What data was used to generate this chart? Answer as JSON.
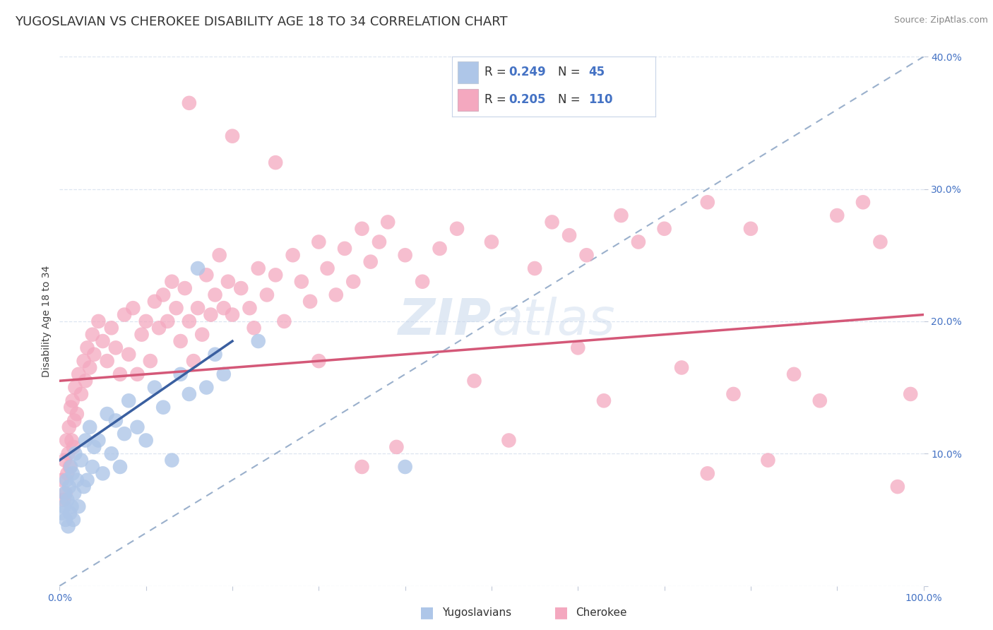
{
  "title": "YUGOSLAVIAN VS CHEROKEE DISABILITY AGE 18 TO 34 CORRELATION CHART",
  "source": "Source: ZipAtlas.com",
  "ylabel": "Disability Age 18 to 34",
  "watermark_zip": "ZIP",
  "watermark_atlas": "atlas",
  "legend_r1": "0.249",
  "legend_n1": "45",
  "legend_r2": "0.205",
  "legend_n2": "110",
  "blue_color": "#aec6e8",
  "pink_color": "#f4a8bf",
  "blue_line_color": "#3a5fa0",
  "pink_line_color": "#d45878",
  "dashed_line_color": "#9ab0cc",
  "blue_scatter": [
    [
      0.3,
      5.5
    ],
    [
      0.5,
      6.0
    ],
    [
      0.6,
      7.0
    ],
    [
      0.7,
      5.0
    ],
    [
      0.8,
      8.0
    ],
    [
      0.9,
      6.5
    ],
    [
      1.0,
      4.5
    ],
    [
      1.1,
      7.5
    ],
    [
      1.2,
      5.5
    ],
    [
      1.3,
      9.0
    ],
    [
      1.4,
      6.0
    ],
    [
      1.5,
      8.5
    ],
    [
      1.6,
      5.0
    ],
    [
      1.7,
      7.0
    ],
    [
      1.8,
      10.0
    ],
    [
      2.0,
      8.0
    ],
    [
      2.2,
      6.0
    ],
    [
      2.5,
      9.5
    ],
    [
      2.8,
      7.5
    ],
    [
      3.0,
      11.0
    ],
    [
      3.2,
      8.0
    ],
    [
      3.5,
      12.0
    ],
    [
      3.8,
      9.0
    ],
    [
      4.0,
      10.5
    ],
    [
      4.5,
      11.0
    ],
    [
      5.0,
      8.5
    ],
    [
      5.5,
      13.0
    ],
    [
      6.0,
      10.0
    ],
    [
      6.5,
      12.5
    ],
    [
      7.0,
      9.0
    ],
    [
      7.5,
      11.5
    ],
    [
      8.0,
      14.0
    ],
    [
      9.0,
      12.0
    ],
    [
      10.0,
      11.0
    ],
    [
      11.0,
      15.0
    ],
    [
      12.0,
      13.5
    ],
    [
      13.0,
      9.5
    ],
    [
      14.0,
      16.0
    ],
    [
      15.0,
      14.5
    ],
    [
      16.0,
      24.0
    ],
    [
      17.0,
      15.0
    ],
    [
      18.0,
      17.5
    ],
    [
      19.0,
      16.0
    ],
    [
      23.0,
      18.5
    ],
    [
      40.0,
      9.0
    ]
  ],
  "pink_scatter": [
    [
      0.3,
      8.0
    ],
    [
      0.5,
      6.5
    ],
    [
      0.6,
      9.5
    ],
    [
      0.7,
      7.0
    ],
    [
      0.8,
      11.0
    ],
    [
      0.9,
      8.5
    ],
    [
      1.0,
      10.0
    ],
    [
      1.1,
      12.0
    ],
    [
      1.2,
      9.0
    ],
    [
      1.3,
      13.5
    ],
    [
      1.4,
      11.0
    ],
    [
      1.5,
      14.0
    ],
    [
      1.6,
      10.5
    ],
    [
      1.7,
      12.5
    ],
    [
      1.8,
      15.0
    ],
    [
      2.0,
      13.0
    ],
    [
      2.2,
      16.0
    ],
    [
      2.5,
      14.5
    ],
    [
      2.8,
      17.0
    ],
    [
      3.0,
      15.5
    ],
    [
      3.2,
      18.0
    ],
    [
      3.5,
      16.5
    ],
    [
      3.8,
      19.0
    ],
    [
      4.0,
      17.5
    ],
    [
      4.5,
      20.0
    ],
    [
      5.0,
      18.5
    ],
    [
      5.5,
      17.0
    ],
    [
      6.0,
      19.5
    ],
    [
      6.5,
      18.0
    ],
    [
      7.0,
      16.0
    ],
    [
      7.5,
      20.5
    ],
    [
      8.0,
      17.5
    ],
    [
      8.5,
      21.0
    ],
    [
      9.0,
      16.0
    ],
    [
      9.5,
      19.0
    ],
    [
      10.0,
      20.0
    ],
    [
      10.5,
      17.0
    ],
    [
      11.0,
      21.5
    ],
    [
      11.5,
      19.5
    ],
    [
      12.0,
      22.0
    ],
    [
      12.5,
      20.0
    ],
    [
      13.0,
      23.0
    ],
    [
      13.5,
      21.0
    ],
    [
      14.0,
      18.5
    ],
    [
      14.5,
      22.5
    ],
    [
      15.0,
      20.0
    ],
    [
      15.5,
      17.0
    ],
    [
      16.0,
      21.0
    ],
    [
      16.5,
      19.0
    ],
    [
      17.0,
      23.5
    ],
    [
      17.5,
      20.5
    ],
    [
      18.0,
      22.0
    ],
    [
      18.5,
      25.0
    ],
    [
      19.0,
      21.0
    ],
    [
      19.5,
      23.0
    ],
    [
      20.0,
      20.5
    ],
    [
      21.0,
      22.5
    ],
    [
      22.0,
      21.0
    ],
    [
      22.5,
      19.5
    ],
    [
      23.0,
      24.0
    ],
    [
      24.0,
      22.0
    ],
    [
      25.0,
      23.5
    ],
    [
      26.0,
      20.0
    ],
    [
      27.0,
      25.0
    ],
    [
      28.0,
      23.0
    ],
    [
      29.0,
      21.5
    ],
    [
      30.0,
      26.0
    ],
    [
      31.0,
      24.0
    ],
    [
      32.0,
      22.0
    ],
    [
      33.0,
      25.5
    ],
    [
      34.0,
      23.0
    ],
    [
      35.0,
      27.0
    ],
    [
      36.0,
      24.5
    ],
    [
      37.0,
      26.0
    ],
    [
      38.0,
      27.5
    ],
    [
      39.0,
      10.5
    ],
    [
      40.0,
      25.0
    ],
    [
      42.0,
      23.0
    ],
    [
      44.0,
      25.5
    ],
    [
      46.0,
      27.0
    ],
    [
      48.0,
      15.5
    ],
    [
      50.0,
      26.0
    ],
    [
      52.0,
      11.0
    ],
    [
      55.0,
      24.0
    ],
    [
      57.0,
      27.5
    ],
    [
      59.0,
      26.5
    ],
    [
      61.0,
      25.0
    ],
    [
      63.0,
      14.0
    ],
    [
      65.0,
      28.0
    ],
    [
      67.0,
      26.0
    ],
    [
      70.0,
      27.0
    ],
    [
      72.0,
      16.5
    ],
    [
      75.0,
      29.0
    ],
    [
      78.0,
      14.5
    ],
    [
      80.0,
      27.0
    ],
    [
      82.0,
      9.5
    ],
    [
      85.0,
      16.0
    ],
    [
      88.0,
      14.0
    ],
    [
      90.0,
      28.0
    ],
    [
      93.0,
      29.0
    ],
    [
      95.0,
      26.0
    ],
    [
      97.0,
      7.5
    ],
    [
      98.5,
      14.5
    ],
    [
      15.0,
      36.5
    ],
    [
      20.0,
      34.0
    ],
    [
      25.0,
      32.0
    ],
    [
      30.0,
      17.0
    ],
    [
      35.0,
      9.0
    ],
    [
      60.0,
      18.0
    ],
    [
      75.0,
      8.5
    ]
  ],
  "blue_line": [
    [
      0,
      9.5
    ],
    [
      20,
      18.5
    ]
  ],
  "pink_line": [
    [
      0,
      15.5
    ],
    [
      100,
      20.5
    ]
  ],
  "dashed_line": [
    [
      0,
      0
    ],
    [
      100,
      40
    ]
  ],
  "xlim": [
    0,
    100
  ],
  "ylim": [
    0,
    40
  ],
  "background_color": "#ffffff",
  "grid_color": "#dde5f0",
  "title_fontsize": 13,
  "source_fontsize": 9,
  "axis_label_fontsize": 10,
  "tick_fontsize": 10,
  "legend_fontsize": 12
}
